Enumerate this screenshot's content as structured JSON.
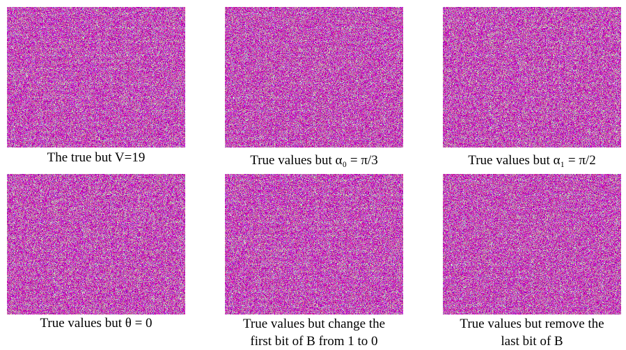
{
  "panels": [
    {
      "caption": [
        "The true but V=19"
      ]
    },
    {
      "caption": [
        "True values but α₀ = π/3"
      ]
    },
    {
      "caption": [
        "True values but α₁ = π/2"
      ]
    },
    {
      "caption": [
        "True values but θ = 0"
      ]
    },
    {
      "caption": [
        "True values but change the",
        "first bit of B from 1 to 0"
      ]
    },
    {
      "caption": [
        "True values but remove the",
        "last bit of B"
      ]
    }
  ]
}
